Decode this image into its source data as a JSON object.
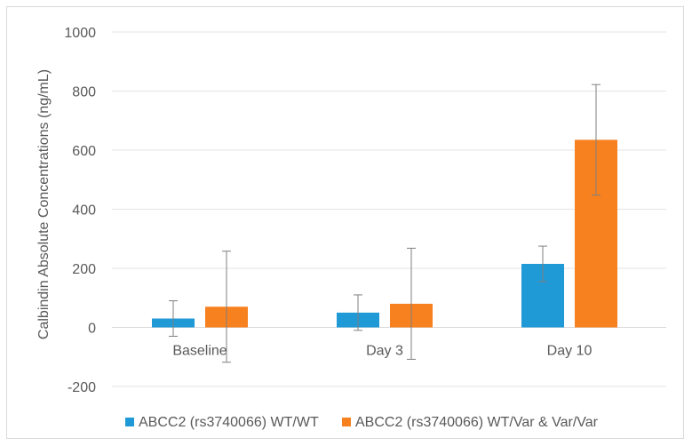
{
  "chart_data": {
    "type": "bar",
    "title": "",
    "xlabel": "",
    "ylabel": "Calbindin Absolute Concentrations (ng/mL)",
    "ylim": [
      -200,
      1000
    ],
    "yticks": [
      "-200",
      "0",
      "200",
      "400",
      "600",
      "800",
      "1000"
    ],
    "categories": [
      "Baseline",
      "Day 3",
      "Day 10"
    ],
    "series": [
      {
        "name": "ABCC2 (rs3740066) WT/WT",
        "color": "#1f9ad6",
        "values": [
          30,
          50,
          215
        ],
        "error": [
          60,
          60,
          60
        ]
      },
      {
        "name": "ABCC2 (rs3740066) WT/Var & Var/Var",
        "color": "#f7801f",
        "values": [
          70,
          80,
          635
        ],
        "error": [
          188,
          188,
          187
        ]
      }
    ],
    "grid": true,
    "legend_position": "bottom"
  }
}
